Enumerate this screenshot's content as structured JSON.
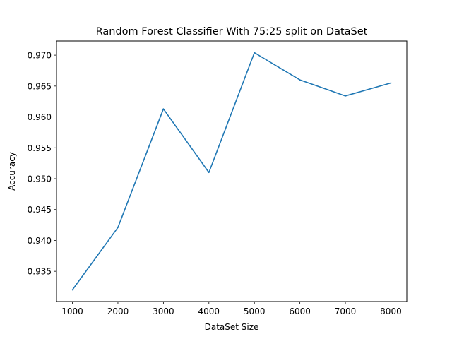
{
  "chart_data": {
    "type": "line",
    "title": "Random Forest Classifier With 75:25 split on DataSet",
    "xlabel": "DataSet Size",
    "ylabel": "Accuracy",
    "x": [
      1000,
      2000,
      3000,
      4000,
      5000,
      6000,
      7000,
      8000
    ],
    "series": [
      {
        "values": [
          0.932,
          0.9421,
          0.9613,
          0.951,
          0.9704,
          0.966,
          0.9634,
          0.9655
        ],
        "color": "#1f77b4"
      }
    ],
    "xlim": [
      650,
      8350
    ],
    "ylim": [
      0.9301,
      0.9723
    ],
    "xticks": [
      1000,
      2000,
      3000,
      4000,
      5000,
      6000,
      7000,
      8000
    ],
    "xtick_labels": [
      "1000",
      "2000",
      "3000",
      "4000",
      "5000",
      "6000",
      "7000",
      "8000"
    ],
    "yticks": [
      0.935,
      0.94,
      0.945,
      0.95,
      0.955,
      0.96,
      0.965,
      0.97
    ],
    "ytick_labels": [
      "0.935",
      "0.940",
      "0.945",
      "0.950",
      "0.955",
      "0.960",
      "0.965",
      "0.970"
    ],
    "grid": false,
    "legend": "none"
  }
}
